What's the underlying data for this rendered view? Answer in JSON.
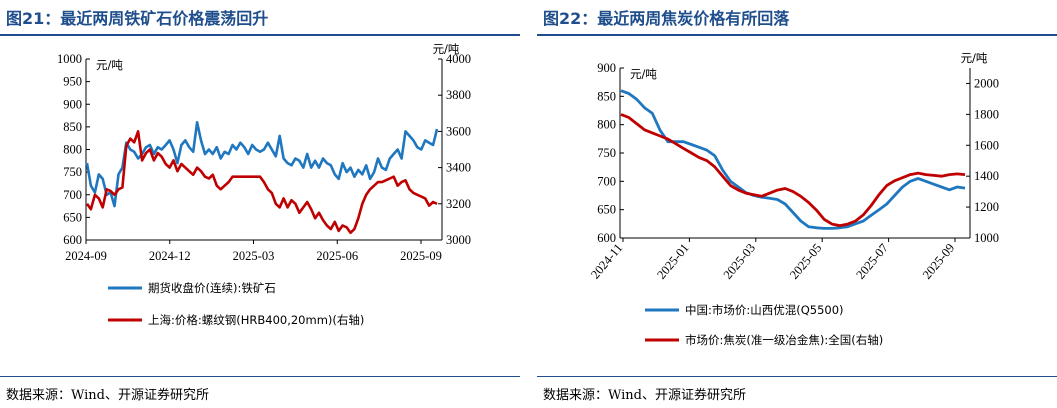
{
  "left": {
    "title": "图21：最近两周铁矿石价格震荡回升",
    "source": "数据来源：Wind、开源证券研究所",
    "chart_data": {
      "type": "line",
      "y_unit": "元/吨",
      "y2_unit": "元/吨",
      "ylim": [
        600,
        1000
      ],
      "y_ticks": [
        "1000",
        "950",
        "900",
        "850",
        "800",
        "750",
        "700",
        "650",
        "600"
      ],
      "y2lim": [
        3000,
        4000
      ],
      "y2_ticks": [
        "4000",
        "3800",
        "3600",
        "3400",
        "3200",
        "3000"
      ],
      "x_ticks": [
        "2024-09",
        "2024-12",
        "2025-03",
        "2025-06",
        "2025-09"
      ],
      "grid": false,
      "legend": "bottom",
      "series": [
        {
          "name": "期货收盘价(连续):铁矿石",
          "axis": "left",
          "color": "#1f77c0",
          "x": [
            0,
            2,
            4,
            6,
            8,
            10,
            12,
            14,
            16,
            18,
            20,
            22,
            24,
            26,
            28,
            30,
            32,
            34,
            36,
            38,
            40,
            42,
            44,
            46,
            48,
            50,
            52,
            54,
            56,
            58,
            60,
            62,
            64,
            66,
            68,
            70,
            72,
            74,
            76,
            78,
            80,
            82,
            84,
            86,
            88,
            90,
            92,
            94,
            96,
            98,
            100,
            102,
            104,
            106,
            108,
            110,
            112,
            114,
            116,
            118,
            120,
            122,
            124,
            126,
            128,
            130,
            132,
            134,
            136,
            138,
            140,
            142,
            144,
            146,
            148,
            150,
            152,
            154,
            156,
            158,
            160,
            162,
            164,
            166,
            168,
            170,
            172,
            174,
            176,
            178
          ],
          "values": [
            770,
            720,
            705,
            745,
            735,
            700,
            705,
            675,
            745,
            760,
            815,
            800,
            795,
            780,
            790,
            805,
            810,
            790,
            805,
            800,
            810,
            820,
            800,
            770,
            810,
            820,
            805,
            795,
            860,
            820,
            790,
            800,
            790,
            805,
            780,
            795,
            790,
            810,
            800,
            815,
            805,
            790,
            810,
            800,
            795,
            800,
            815,
            800,
            785,
            830,
            780,
            770,
            765,
            780,
            775,
            760,
            790,
            760,
            775,
            760,
            780,
            770,
            765,
            745,
            735,
            770,
            750,
            760,
            740,
            755,
            745,
            765,
            735,
            750,
            780,
            760,
            755,
            780,
            790,
            800,
            780,
            840,
            830,
            820,
            805,
            800,
            820,
            815,
            810,
            845
          ]
        },
        {
          "name": "上海:价格:螺纹钢(HRB400,20mm)(右轴)",
          "axis": "right",
          "color": "#c00000",
          "x": [
            0,
            2,
            4,
            6,
            8,
            10,
            12,
            14,
            16,
            18,
            20,
            22,
            24,
            26,
            28,
            30,
            32,
            34,
            36,
            38,
            40,
            42,
            44,
            46,
            48,
            50,
            52,
            54,
            56,
            58,
            60,
            62,
            64,
            66,
            68,
            70,
            72,
            74,
            76,
            78,
            80,
            82,
            84,
            86,
            88,
            90,
            92,
            94,
            96,
            98,
            100,
            102,
            104,
            106,
            108,
            110,
            112,
            114,
            116,
            118,
            120,
            122,
            124,
            126,
            128,
            130,
            132,
            134,
            136,
            138,
            140,
            142,
            144,
            146,
            148,
            150,
            152,
            154,
            156,
            158,
            160,
            162,
            164,
            166,
            168,
            170,
            172,
            174,
            176,
            178
          ],
          "values": [
            3200,
            3170,
            3250,
            3230,
            3180,
            3280,
            3270,
            3250,
            3280,
            3290,
            3520,
            3560,
            3540,
            3600,
            3440,
            3480,
            3500,
            3440,
            3480,
            3460,
            3420,
            3400,
            3440,
            3380,
            3420,
            3400,
            3380,
            3360,
            3400,
            3380,
            3350,
            3340,
            3360,
            3300,
            3280,
            3300,
            3320,
            3350,
            3350,
            3350,
            3350,
            3350,
            3350,
            3350,
            3350,
            3320,
            3280,
            3260,
            3200,
            3180,
            3230,
            3180,
            3220,
            3200,
            3150,
            3180,
            3210,
            3170,
            3120,
            3150,
            3110,
            3080,
            3060,
            3100,
            3050,
            3080,
            3070,
            3040,
            3060,
            3120,
            3200,
            3250,
            3280,
            3300,
            3320,
            3320,
            3330,
            3340,
            3350,
            3300,
            3320,
            3330,
            3280,
            3260,
            3250,
            3240,
            3230,
            3190,
            3210,
            3200
          ]
        }
      ]
    }
  },
  "right": {
    "title": "图22：最近两周焦炭价格有所回落",
    "source": "数据来源：Wind、开源证券研究所",
    "chart_data": {
      "type": "line",
      "y_unit": "元/吨",
      "y2_unit": "元/吨",
      "ylim": [
        600,
        900
      ],
      "y_ticks": [
        "900",
        "850",
        "800",
        "750",
        "700",
        "650",
        "600"
      ],
      "y2lim": [
        1000,
        2100
      ],
      "y2_ticks": [
        "2000",
        "1800",
        "1600",
        "1400",
        "1200",
        "1000"
      ],
      "x_ticks": [
        "2024-11",
        "2025-01",
        "2025-03",
        "2025-05",
        "2025-07",
        "2025-09"
      ],
      "grid": false,
      "legend": "bottom",
      "series": [
        {
          "name": "中国:市场价:山西优混(Q5500)",
          "axis": "left",
          "color": "#1f77c0",
          "x": [
            0,
            1,
            2,
            3,
            4,
            5,
            6,
            7,
            8,
            9,
            10,
            11,
            12,
            13,
            14,
            15,
            16,
            17,
            18,
            19,
            20,
            21,
            22,
            23,
            24,
            25,
            26,
            27,
            28,
            29,
            30,
            31,
            32,
            33,
            34,
            35,
            36,
            37,
            38,
            39,
            40,
            41,
            42,
            43,
            44
          ],
          "values": [
            860,
            855,
            845,
            830,
            820,
            790,
            770,
            770,
            770,
            765,
            760,
            755,
            745,
            720,
            700,
            690,
            680,
            675,
            672,
            670,
            668,
            660,
            645,
            630,
            620,
            618,
            617,
            617,
            618,
            620,
            625,
            630,
            640,
            650,
            660,
            675,
            690,
            700,
            705,
            700,
            695,
            690,
            685,
            690,
            688
          ]
        },
        {
          "name": "市场价:焦炭(准一级冶金焦):全国(右轴)",
          "axis": "right",
          "color": "#c00000",
          "x": [
            0,
            1,
            2,
            3,
            4,
            5,
            6,
            7,
            8,
            9,
            10,
            11,
            12,
            13,
            14,
            15,
            16,
            17,
            18,
            19,
            20,
            21,
            22,
            23,
            24,
            25,
            26,
            27,
            28,
            29,
            30,
            31,
            32,
            33,
            34,
            35,
            36,
            37,
            38,
            39,
            40,
            41,
            42,
            43,
            44
          ],
          "values": [
            1800,
            1780,
            1740,
            1700,
            1680,
            1660,
            1640,
            1610,
            1580,
            1550,
            1520,
            1500,
            1460,
            1400,
            1340,
            1310,
            1290,
            1280,
            1270,
            1290,
            1310,
            1320,
            1300,
            1270,
            1230,
            1180,
            1120,
            1090,
            1080,
            1090,
            1110,
            1150,
            1210,
            1280,
            1340,
            1370,
            1390,
            1410,
            1420,
            1410,
            1405,
            1400,
            1410,
            1415,
            1410
          ]
        }
      ]
    }
  }
}
